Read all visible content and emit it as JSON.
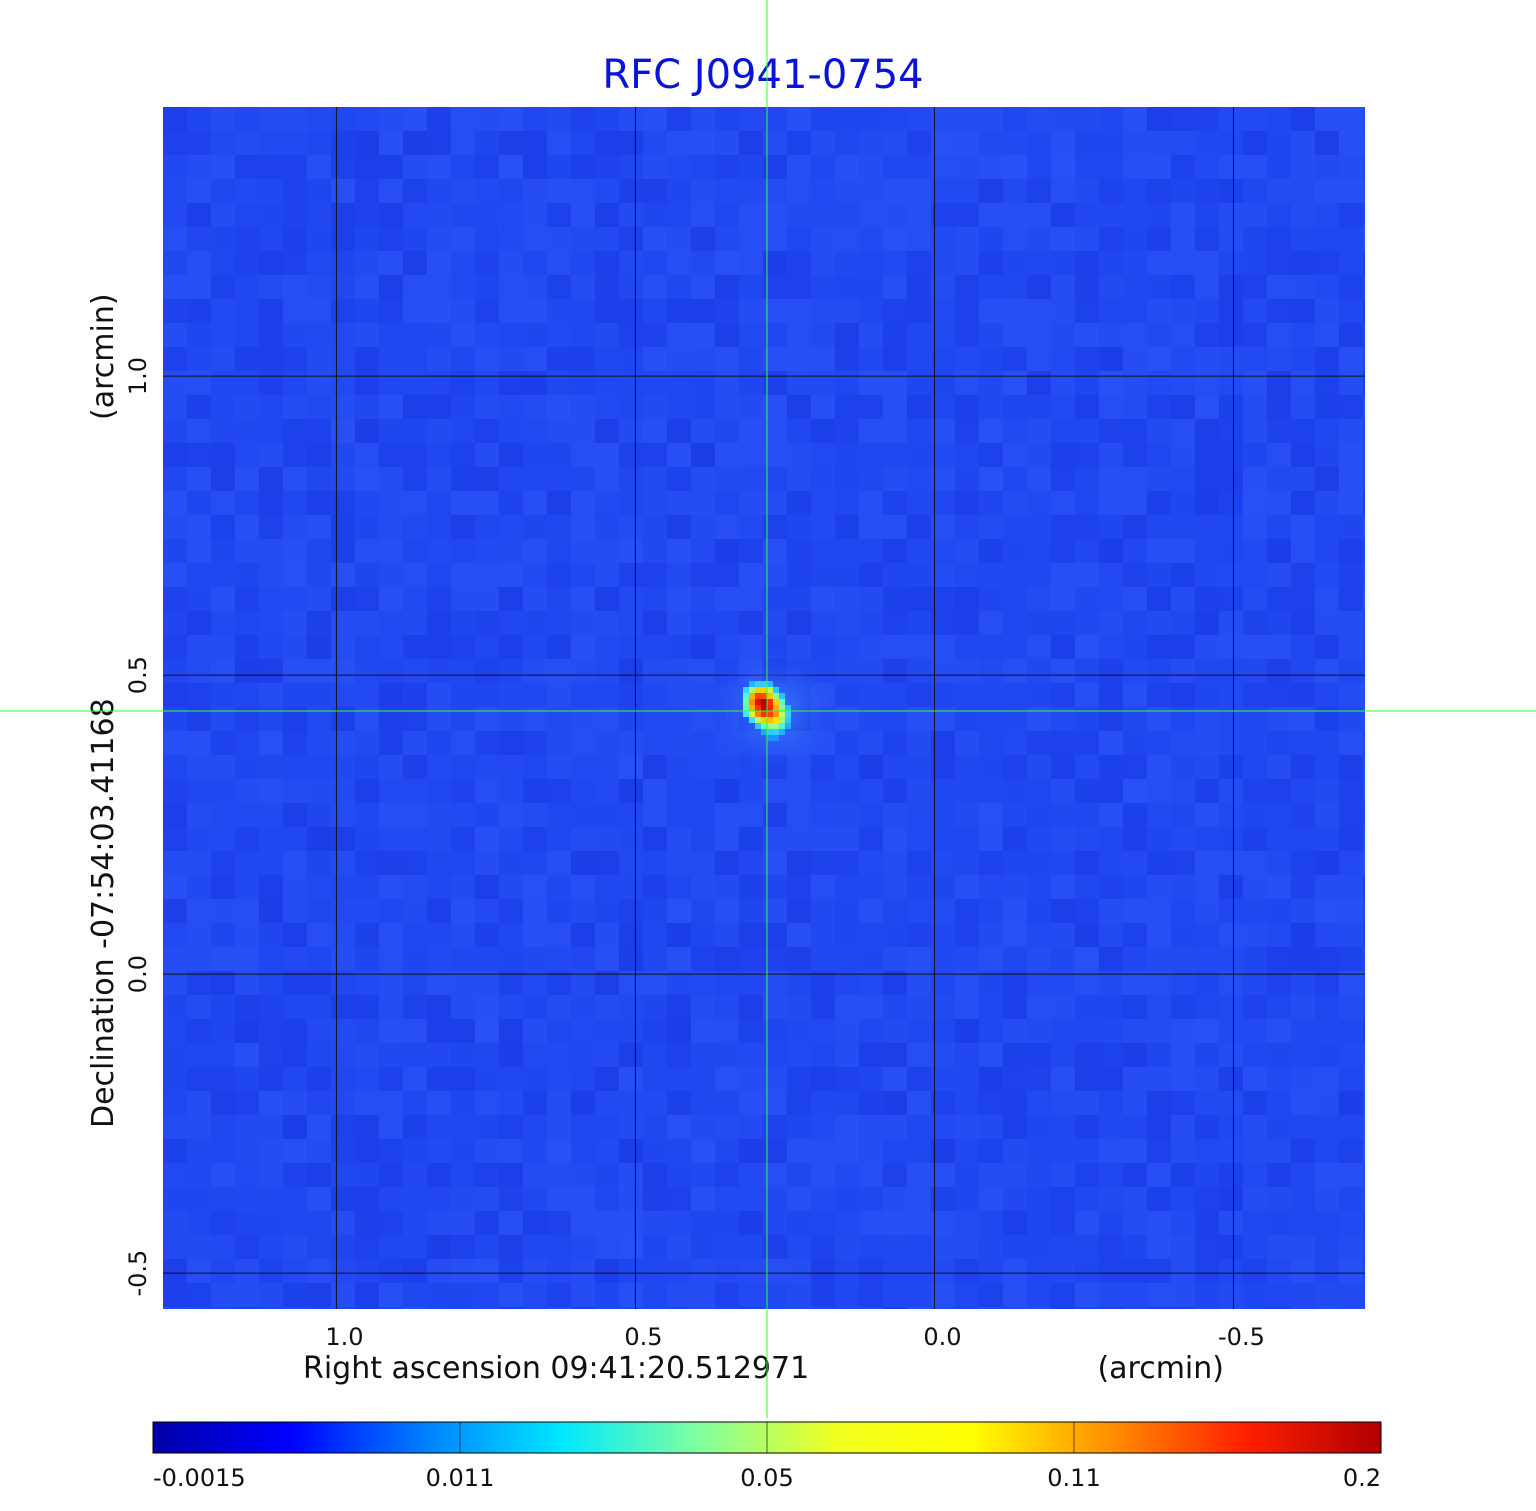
{
  "chart_data": {
    "type": "heatmap",
    "title": "RFC J0941-0754",
    "xlabel": "Right ascension  09:41:20.512971",
    "xunit": "(arcmin)",
    "ylabel": "Declination  -07:54:03.41168",
    "yunit": "(arcmin)",
    "x_ticks": [
      "1.0",
      "0.5",
      "0.0",
      "-0.5"
    ],
    "x_tick_values": [
      1.0,
      0.5,
      0.0,
      -0.5
    ],
    "y_ticks": [
      "1.0",
      "0.5",
      "0.0",
      "-0.5"
    ],
    "y_tick_values": [
      1.0,
      0.5,
      0.0,
      -0.5
    ],
    "xlim": [
      1.29,
      -0.72
    ],
    "ylim": [
      -0.56,
      1.45
    ],
    "grid": true,
    "crosshair": {
      "ra_offset": 0.28,
      "dec_offset": 0.44
    },
    "source": {
      "ra_offset": 0.27,
      "dec_offset": 0.44,
      "peak": 0.2
    },
    "colorbar": {
      "ticks": [
        "-0.0015",
        "0.011",
        "0.05",
        "0.11",
        "0.2"
      ],
      "colors": [
        "#0000a8",
        "#0000ff",
        "#0080ff",
        "#00e8ff",
        "#80ffa0",
        "#f0ff20",
        "#ffff00",
        "#ff9000",
        "#ff2000",
        "#b00000"
      ]
    },
    "background_color": "#1f45f0",
    "grid_color": "#101020",
    "crosshair_color": "#33ff33"
  }
}
